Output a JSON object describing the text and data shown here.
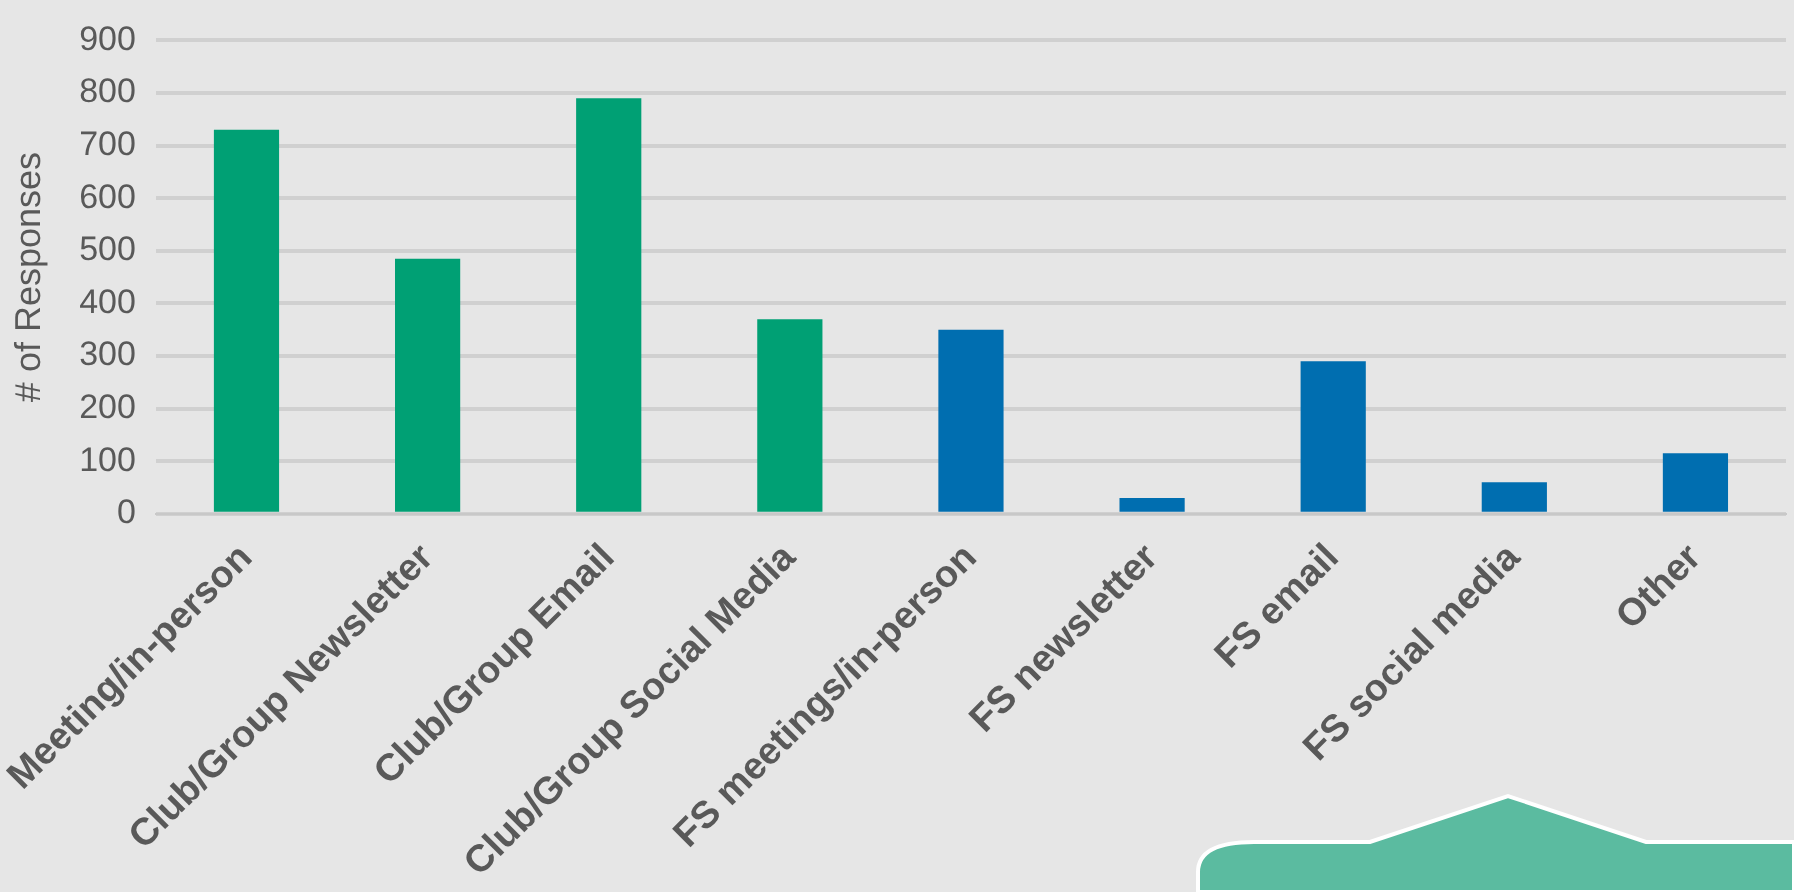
{
  "chart_data": {
    "type": "bar",
    "ylabel": "# of Responses",
    "categories": [
      "Meeting/in-person",
      "Club/Group Newsletter",
      "Club/Group Email",
      "Club/Group Social Media",
      "FS meetings/in-person",
      "FS newsletter",
      "FS email",
      "FS social media",
      "Other"
    ],
    "values": [
      730,
      485,
      790,
      370,
      350,
      30,
      290,
      60,
      115
    ],
    "colors": [
      "#00a074",
      "#00a074",
      "#00a074",
      "#00a074",
      "#006eb0",
      "#006eb0",
      "#006eb0",
      "#006eb0",
      "#006eb0"
    ],
    "ylim": [
      0,
      900
    ],
    "yticks": [
      0,
      100,
      200,
      300,
      400,
      500,
      600,
      700,
      800,
      900
    ],
    "grid": "y",
    "legend": false
  }
}
